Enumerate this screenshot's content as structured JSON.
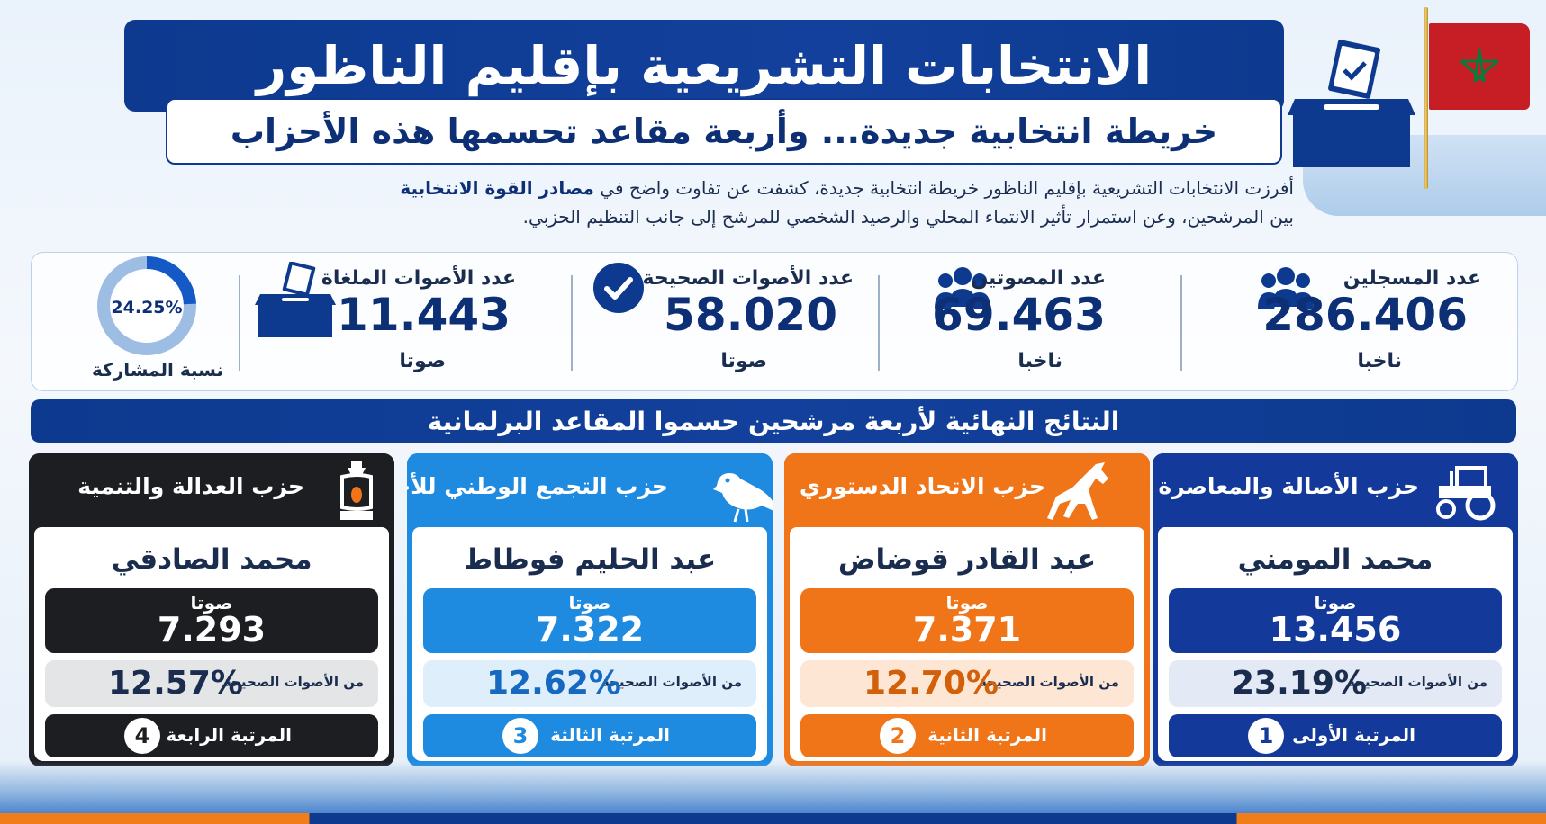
{
  "header": {
    "title": "الانتخابات التشريعية بإقليم الناظور",
    "subtitle": "خريطة انتخابية جديدة... وأربعة مقاعد تحسمها هذه الأحزاب"
  },
  "intro": {
    "part1": "أفرزت الانتخابات التشريعية بإقليم الناظور خريطة انتخابية جديدة، كشفت عن تفاوت واضح في ",
    "strong": "مصادر القوة الانتخابية",
    "line2": "بين المرشحين، وعن استمرار تأثير الانتماء المحلي والرصيد الشخصي للمرشح إلى جانب التنظيم الحزبي."
  },
  "stats": {
    "registered": {
      "label": "عدد المسجلين",
      "value": "286.406",
      "unit": "ناخبا",
      "icon": "people-icon"
    },
    "voters": {
      "label": "عدد المصوتين",
      "value": "69.463",
      "unit": "ناخبا",
      "icon": "people-icon"
    },
    "valid": {
      "label": "عدد الأصوات الصحيحة",
      "value": "58.020",
      "unit": "صوتا",
      "icon": "check-circle-icon"
    },
    "invalid": {
      "label": "عدد الأصوات الملغاة",
      "value": "11.443",
      "unit": "صوتا",
      "icon": "ballot-box-icon"
    },
    "participation": {
      "label": "نسبة المشاركة",
      "value": "24.25%",
      "fraction": 0.2425
    }
  },
  "results": {
    "heading": "النتائج النهائية لأربعة مرشحين حسموا المقاعد البرلمانية",
    "cards": [
      {
        "party": "حزب الأصالة والمعاصرة",
        "icon": "tractor-icon",
        "candidate": "محمد المومني",
        "votes_unit": "صوتا",
        "votes": "13.456",
        "pct_label": "من الأصوات الصحيحة",
        "pct": "23.19%",
        "rank_label": "المرتبة الأولى",
        "rank": "1",
        "color": "#13399a",
        "light": "#e3e9f5"
      },
      {
        "party": "حزب الاتحاد الدستوري",
        "icon": "horse-icon",
        "candidate": "عبد القادر قوضاض",
        "votes_unit": "صوتا",
        "votes": "7.371",
        "pct_label": "من الأصوات الصحيحة",
        "pct": "12.70%",
        "rank_label": "المرتبة الثانية",
        "rank": "2",
        "color": "#f07418",
        "light": "#fde6d3"
      },
      {
        "party": "حزب التجمع الوطني للأحرار",
        "icon": "bird-icon",
        "candidate": "عبد الحليم فوطاط",
        "votes_unit": "صوتا",
        "votes": "7.322",
        "pct_label": "من الأصوات الصحيحة",
        "pct": "12.62%",
        "rank_label": "المرتبة الثالثة",
        "rank": "3",
        "color": "#1f8be0",
        "light": "#dfeefb"
      },
      {
        "party": "حزب العدالة والتنمية",
        "icon": "lamp-icon",
        "candidate": "محمد الصادقي",
        "votes_unit": "صوتا",
        "votes": "7.293",
        "pct_label": "من الأصوات الصحيحة",
        "pct": "12.57%",
        "rank_label": "المرتبة الرابعة",
        "rank": "4",
        "color": "#1c1e22",
        "light": "#e4e5e7"
      }
    ]
  }
}
